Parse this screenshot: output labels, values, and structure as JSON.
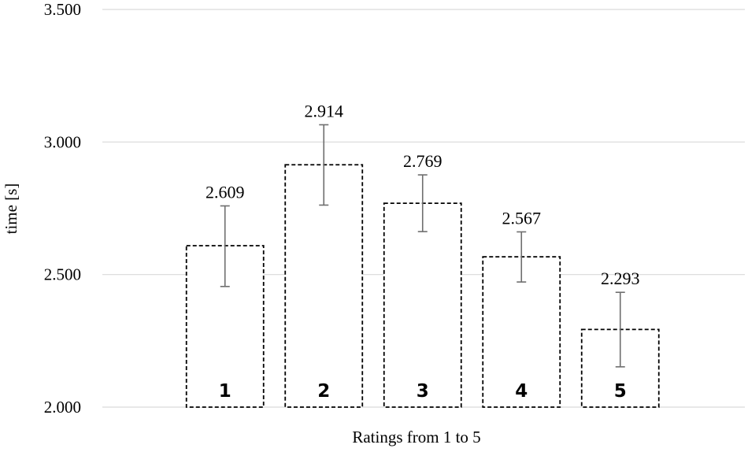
{
  "chart_data": {
    "type": "bar",
    "title": "",
    "xlabel": "Ratings from 1 to 5",
    "ylabel": "time [s]",
    "ylim": [
      2.0,
      3.5
    ],
    "yticks": [
      2.0,
      2.5,
      3.0,
      3.5
    ],
    "ytick_labels": [
      "2.000",
      "2.500",
      "3.000",
      "3.500"
    ],
    "grid": true,
    "categories": [
      "1",
      "2",
      "3",
      "4",
      "5"
    ],
    "values": [
      2.609,
      2.914,
      2.769,
      2.567,
      2.293
    ],
    "value_labels": [
      "2.609",
      "2.914",
      "2.769",
      "2.567",
      "2.293"
    ],
    "error_low": [
      2.455,
      2.762,
      2.662,
      2.472,
      2.152
    ],
    "error_high": [
      2.759,
      3.065,
      2.876,
      2.661,
      2.433
    ]
  }
}
